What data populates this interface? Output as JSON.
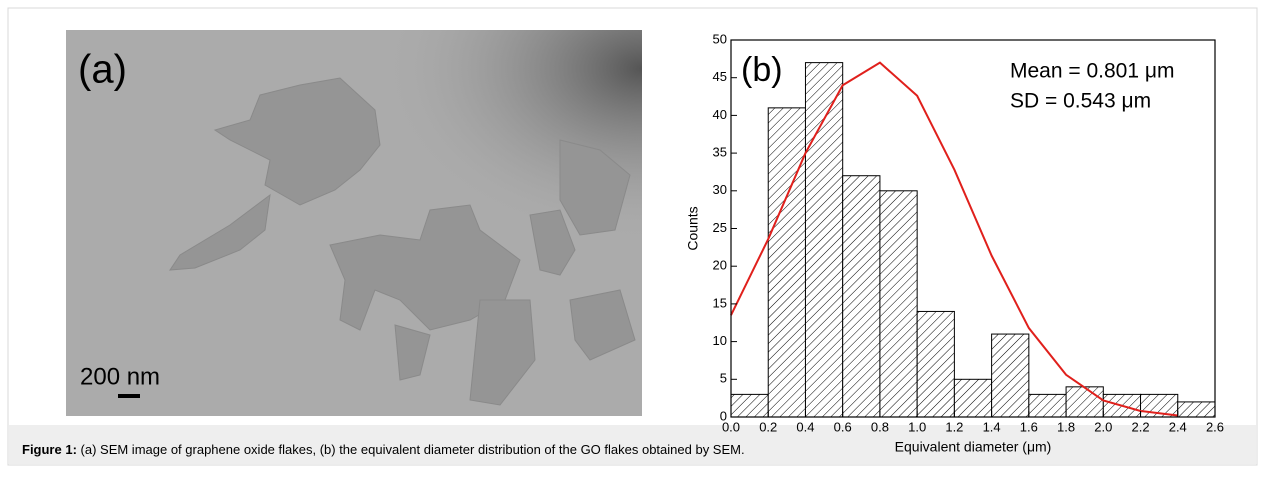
{
  "panel_a": {
    "label": "(a)",
    "scale_bar": "200 nm"
  },
  "chart_data": {
    "type": "histogram",
    "panel_label": "(b)",
    "annotations": [
      "Mean = 0.801 μm",
      "SD = 0.543 μm"
    ],
    "x_label": "Equivalent diameter (μm)",
    "y_label": "Counts",
    "bins": [
      0,
      0.2,
      0.4,
      0.6,
      0.8,
      1.0,
      1.2,
      1.4,
      1.6,
      1.8,
      2.0,
      2.2,
      2.4,
      2.6
    ],
    "values": [
      3,
      41,
      47,
      32,
      30,
      14,
      5,
      11,
      3,
      4,
      3,
      3,
      2
    ],
    "color": "#000000",
    "series": [
      {
        "type": "line",
        "color": "#e0201c",
        "x": [
          0,
          0.2,
          0.4,
          0.6,
          0.8,
          1.0,
          1.2,
          1.4,
          1.6,
          1.8,
          2.0,
          2.2,
          2.4
        ],
        "values": [
          13.5,
          23.6,
          35.0,
          44.0,
          47.0,
          42.6,
          32.8,
          21.4,
          11.8,
          5.6,
          2.2,
          0.8,
          0.2
        ]
      }
    ],
    "xlim": [
      0,
      2.6
    ],
    "xticks": [
      {
        "value": 0,
        "label": "0.0"
      },
      0.2,
      0.4,
      0.6,
      0.8,
      {
        "value": 1,
        "label": "1.0"
      },
      1.2,
      1.4,
      1.6,
      1.8,
      {
        "value": 2,
        "label": "2.0"
      },
      2.2,
      2.4,
      2.6
    ],
    "ylim": [
      0,
      50
    ],
    "yticks": [
      0,
      5,
      10,
      15,
      20,
      25,
      30,
      35,
      40,
      45,
      50
    ]
  },
  "caption": {
    "label": "Figure 1:",
    "text": " (a) SEM image of graphene oxide flakes, (b) the equivalent diameter distribution of the GO flakes obtained by SEM."
  }
}
